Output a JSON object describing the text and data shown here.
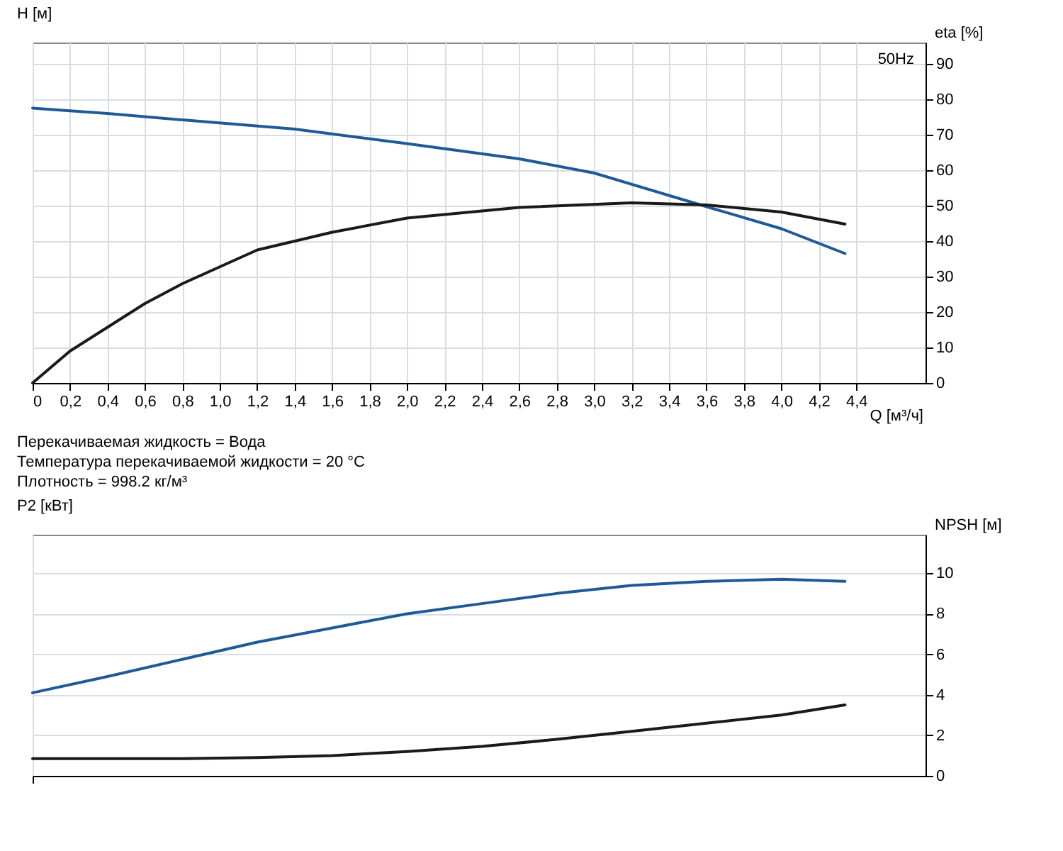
{
  "chart_data": [
    {
      "type": "line",
      "title": "H [м]",
      "y2label": "eta [%]",
      "xlabel": "Q [м³/ч]",
      "annotations": [
        "50Hz"
      ],
      "xlim": [
        0,
        4.77
      ],
      "xticks": [
        {
          "value": 0,
          "label": "0"
        },
        {
          "value": 0.2,
          "label": "0,2"
        },
        {
          "value": 0.4,
          "label": "0,4"
        },
        {
          "value": 0.6,
          "label": "0,6"
        },
        {
          "value": 0.8,
          "label": "0,8"
        },
        {
          "value": 1.0,
          "label": "1,0"
        },
        {
          "value": 1.2,
          "label": "1,2"
        },
        {
          "value": 1.4,
          "label": "1,4"
        },
        {
          "value": 1.6,
          "label": "1,6"
        },
        {
          "value": 1.8,
          "label": "1,8"
        },
        {
          "value": 2.0,
          "label": "2,0"
        },
        {
          "value": 2.2,
          "label": "2,2"
        },
        {
          "value": 2.4,
          "label": "2,4"
        },
        {
          "value": 2.6,
          "label": "2,6"
        },
        {
          "value": 2.8,
          "label": "2,8"
        },
        {
          "value": 3.0,
          "label": "3,0"
        },
        {
          "value": 3.2,
          "label": "3,2"
        },
        {
          "value": 3.4,
          "label": "3,4"
        },
        {
          "value": 3.6,
          "label": "3,6"
        },
        {
          "value": 3.8,
          "label": "3,8"
        },
        {
          "value": 4.0,
          "label": "4,0"
        },
        {
          "value": 4.2,
          "label": "4,2"
        },
        {
          "value": 4.4,
          "label": "4,4"
        }
      ],
      "y2lim": [
        0,
        96
      ],
      "y2ticks": [
        0,
        10,
        20,
        30,
        40,
        50,
        60,
        70,
        80,
        90
      ],
      "grid": true,
      "series": [
        {
          "color": "#1f5a96",
          "axis": "y2",
          "x": [
            0,
            0.4,
            0.8,
            1.4,
            2.0,
            2.6,
            3.0,
            3.55,
            4.0,
            4.34
          ],
          "values": [
            77.5,
            76,
            74.2,
            71.6,
            67.5,
            63.2,
            59.2,
            50.5,
            43.5,
            36.5
          ]
        },
        {
          "color": "#1a1a1a",
          "axis": "y2",
          "x": [
            0,
            0.2,
            0.4,
            0.6,
            0.8,
            1.2,
            1.6,
            2.0,
            2.6,
            3.2,
            3.6,
            4.0,
            4.34
          ],
          "values": [
            0,
            9,
            15.7,
            22.4,
            28,
            37.5,
            42.5,
            46.5,
            49.5,
            50.8,
            50.2,
            48.2,
            44.8
          ]
        }
      ]
    },
    {
      "type": "line",
      "title": "P2 [кВт]",
      "y2label": "NPSH [м]",
      "tick_labels": "y",
      "annotations": [
        "Перекачиваемая жидкость = Вода",
        "Температура перекачиваемой жидкости = 20 °C",
        "Плотность = 998.2 кг/м³"
      ],
      "xlim": [
        0,
        4.77
      ],
      "y2lim": [
        0,
        11.9
      ],
      "y2ticks": [
        0,
        2,
        4,
        6,
        8,
        10
      ],
      "grid": true,
      "series": [
        {
          "color": "#1f5a96",
          "axis": "y2",
          "x": [
            0,
            0.4,
            0.8,
            1.2,
            1.6,
            2.0,
            2.4,
            2.8,
            3.2,
            3.6,
            4.0,
            4.34
          ],
          "values": [
            4.1,
            4.9,
            5.75,
            6.6,
            7.3,
            8.0,
            8.5,
            9.0,
            9.4,
            9.6,
            9.7,
            9.6
          ]
        },
        {
          "color": "#1a1a1a",
          "axis": "y2",
          "x": [
            0,
            0.8,
            1.2,
            1.6,
            2.0,
            2.4,
            2.8,
            3.2,
            3.6,
            4.0,
            4.34
          ],
          "values": [
            0.85,
            0.85,
            0.9,
            1.0,
            1.2,
            1.45,
            1.8,
            2.2,
            2.6,
            3.0,
            3.5
          ]
        }
      ]
    }
  ]
}
